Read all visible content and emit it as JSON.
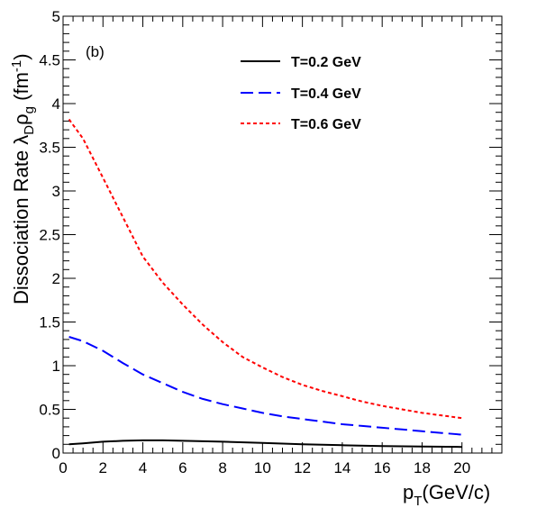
{
  "chart_data": {
    "type": "line",
    "panel_label": "(b)",
    "xlabel_main": "p",
    "xlabel_sub": "T",
    "xlabel_unit": "(GeV/c)",
    "ylabel": {
      "text": "Dissociation Rate ",
      "lambda": "λ",
      "lambda_sub": "D",
      "rho": "ρ",
      "rho_sub": "g",
      "unit_open": " (fm",
      "unit_sup": "-1",
      "unit_close": ")"
    },
    "xlim": [
      0,
      22
    ],
    "ylim": [
      0,
      5
    ],
    "xticks": [
      0,
      2,
      4,
      6,
      8,
      10,
      12,
      14,
      16,
      18,
      20
    ],
    "xtick_labels": [
      "0",
      "2",
      "4",
      "6",
      "8",
      "10",
      "12",
      "14",
      "16",
      "18",
      "20"
    ],
    "yticks": [
      0,
      0.5,
      1,
      1.5,
      2,
      2.5,
      3,
      3.5,
      4,
      4.5,
      5
    ],
    "ytick_labels": [
      "0",
      "0.5",
      "1",
      "1.5",
      "2",
      "2.5",
      "3",
      "3.5",
      "4",
      "4.5",
      "5"
    ],
    "grid": false,
    "legend_position": "top-center",
    "series": [
      {
        "name": "T=0.2 GeV",
        "color": "#000000",
        "dash": "solid",
        "x": [
          0.3,
          1,
          2,
          3,
          4,
          5,
          6,
          7,
          8,
          10,
          12,
          14,
          16,
          18,
          20
        ],
        "y": [
          0.1,
          0.11,
          0.13,
          0.14,
          0.145,
          0.145,
          0.14,
          0.135,
          0.13,
          0.115,
          0.1,
          0.09,
          0.08,
          0.075,
          0.07
        ]
      },
      {
        "name": "T=0.4 GeV",
        "color": "#0000ff",
        "dash": "long-dash",
        "x": [
          0.3,
          1,
          2,
          3,
          4,
          5,
          6,
          7,
          8,
          9,
          10,
          11,
          12,
          13,
          14,
          15,
          16,
          17,
          18,
          19,
          20
        ],
        "y": [
          1.33,
          1.28,
          1.17,
          1.03,
          0.9,
          0.8,
          0.7,
          0.62,
          0.56,
          0.51,
          0.46,
          0.42,
          0.39,
          0.36,
          0.33,
          0.31,
          0.29,
          0.27,
          0.25,
          0.23,
          0.21
        ]
      },
      {
        "name": "T=0.6 GeV",
        "color": "#ff0000",
        "dash": "short-dash",
        "x": [
          0.3,
          1,
          2,
          3,
          4,
          5,
          6,
          7,
          8,
          9,
          10,
          11,
          12,
          13,
          14,
          15,
          16,
          17,
          18,
          19,
          20
        ],
        "y": [
          3.82,
          3.6,
          3.15,
          2.7,
          2.25,
          1.95,
          1.7,
          1.47,
          1.27,
          1.1,
          0.98,
          0.87,
          0.78,
          0.71,
          0.65,
          0.59,
          0.54,
          0.5,
          0.46,
          0.43,
          0.4
        ]
      }
    ]
  }
}
